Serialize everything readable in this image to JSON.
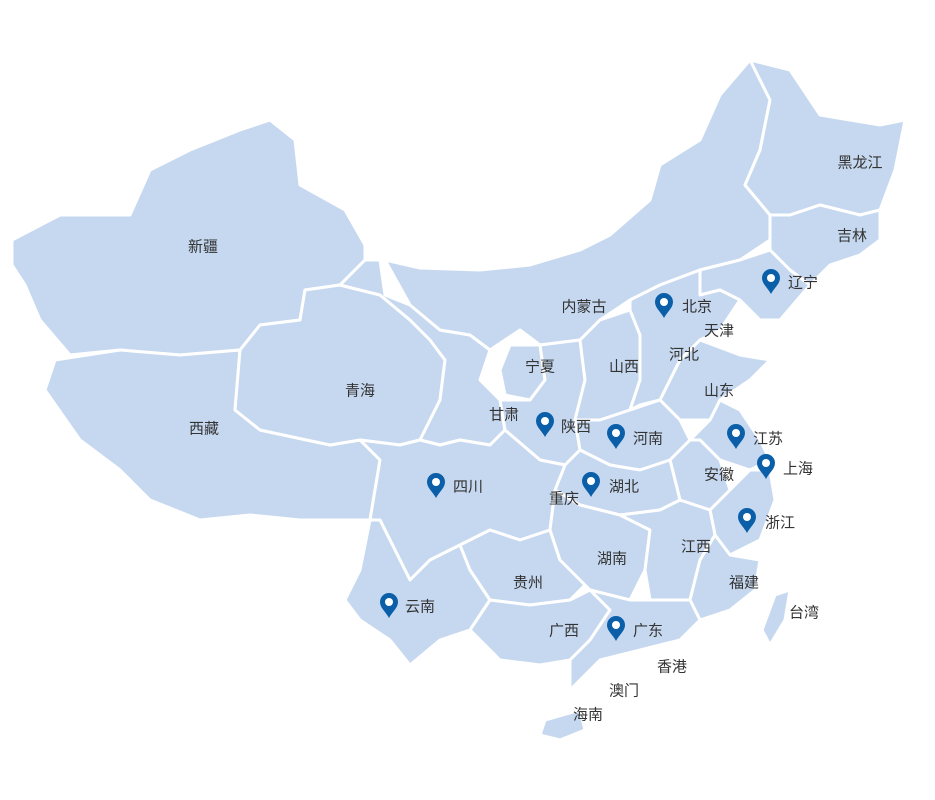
{
  "map": {
    "fill_color": "#c6d8f0",
    "border_color": "#ffffff",
    "pin_color": "#0a5fa8",
    "label_color": "#333333",
    "provinces": {
      "xinjiang": "新疆",
      "xizang": "西藏",
      "qinghai": "青海",
      "neimenggu": "内蒙古",
      "heilongjiang": "黑龙江",
      "jilin": "吉林",
      "liaoning": "辽宁",
      "beijing": "北京",
      "tianjin": "天津",
      "hebei": "河北",
      "shanxi": "山西",
      "ningxia": "宁夏",
      "shandong": "山东",
      "gansu": "甘肃",
      "shaanxi": "陕西",
      "henan": "河南",
      "jiangsu": "江苏",
      "shanghai": "上海",
      "anhui": "安徽",
      "sichuan": "四川",
      "hubei": "湖北",
      "chongqing": "重庆",
      "zhejiang": "浙江",
      "jiangxi": "江西",
      "hunan": "湖南",
      "guizhou": "贵州",
      "fujian": "福建",
      "taiwan": "台湾",
      "yunnan": "云南",
      "guangxi": "广西",
      "guangdong": "广东",
      "xianggang": "香港",
      "aomen": "澳门",
      "hainan": "海南"
    },
    "pinned": [
      "北京",
      "辽宁",
      "陕西",
      "河南",
      "江苏",
      "上海",
      "四川",
      "湖北",
      "浙江",
      "云南",
      "广东"
    ],
    "pin_icon": "map-marker-icon"
  }
}
